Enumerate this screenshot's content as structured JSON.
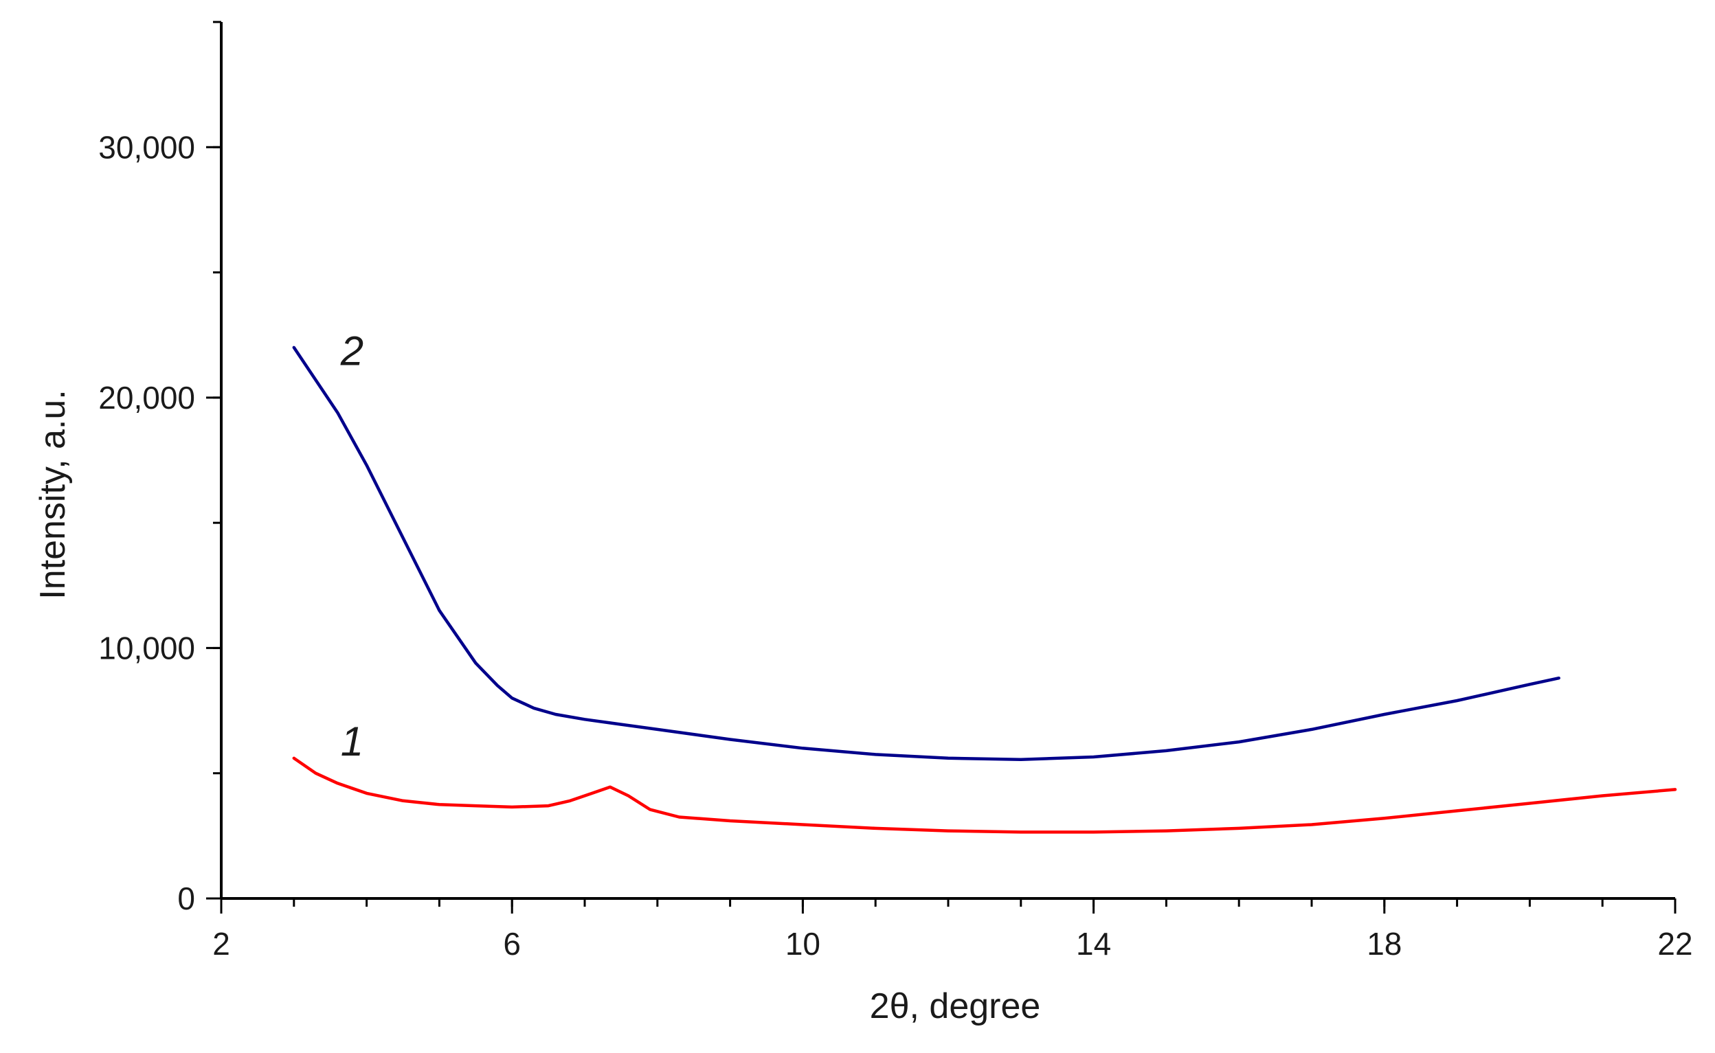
{
  "chart_data": {
    "type": "line",
    "title": "",
    "xlabel": "2θ, degree",
    "ylabel": "Intensity, a.u.",
    "xlim": [
      2,
      22
    ],
    "ylim": [
      0,
      35000
    ],
    "x_ticks": [
      2,
      6,
      10,
      14,
      18,
      22
    ],
    "x_tick_labels": [
      "2",
      "6",
      "10",
      "14",
      "18",
      "22"
    ],
    "x_minor_step": 1,
    "y_ticks": [
      0,
      10000,
      20000,
      30000
    ],
    "y_tick_labels": [
      "0",
      "10,000",
      "20,000",
      "30,000"
    ],
    "y_minor_step": 5000,
    "grid": false,
    "legend": "none",
    "series": [
      {
        "label": "1",
        "color": "#ff0000",
        "label_at": [
          3.8,
          5700
        ],
        "x": [
          3.0,
          3.3,
          3.6,
          4.0,
          4.5,
          5.0,
          5.5,
          6.0,
          6.5,
          6.8,
          7.1,
          7.35,
          7.6,
          7.9,
          8.3,
          9.0,
          10.0,
          11.0,
          12.0,
          13.0,
          14.0,
          15.0,
          16.0,
          17.0,
          18.0,
          19.0,
          20.0,
          21.0,
          22.0
        ],
        "y": [
          5600,
          5000,
          4600,
          4200,
          3900,
          3750,
          3700,
          3650,
          3700,
          3900,
          4200,
          4450,
          4100,
          3550,
          3250,
          3100,
          2950,
          2800,
          2700,
          2650,
          2650,
          2700,
          2800,
          2950,
          3200,
          3500,
          3800,
          4100,
          4350
        ]
      },
      {
        "label": "2",
        "color": "#00008b",
        "label_at": [
          3.8,
          21300
        ],
        "x": [
          3.0,
          3.3,
          3.6,
          4.0,
          4.5,
          5.0,
          5.5,
          5.8,
          6.0,
          6.3,
          6.6,
          7.0,
          7.5,
          8.0,
          9.0,
          10.0,
          11.0,
          12.0,
          13.0,
          14.0,
          15.0,
          16.0,
          17.0,
          18.0,
          19.0,
          20.0,
          20.4
        ],
        "y": [
          22000,
          20700,
          19400,
          17300,
          14400,
          11500,
          9400,
          8500,
          8000,
          7600,
          7350,
          7150,
          6950,
          6750,
          6350,
          6000,
          5750,
          5600,
          5550,
          5650,
          5900,
          6250,
          6750,
          7350,
          7900,
          8550,
          8800
        ]
      }
    ]
  }
}
